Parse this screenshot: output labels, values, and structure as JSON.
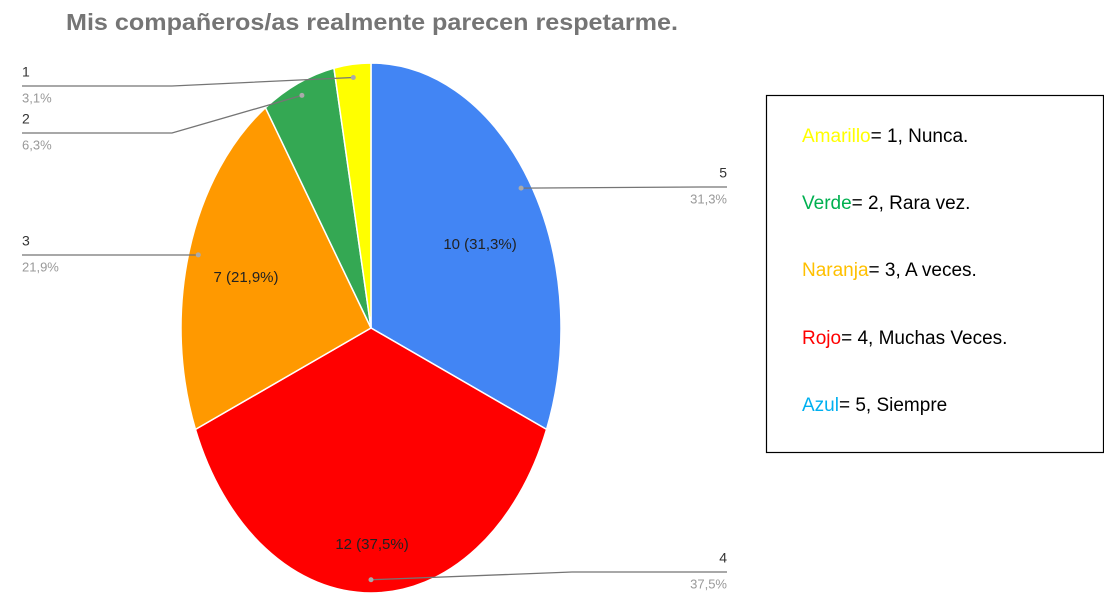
{
  "chart_data": {
    "type": "pie",
    "title": "Mis compañeros/as realmente parecen respetarme.",
    "categories": [
      "5",
      "4",
      "3",
      "2",
      "1"
    ],
    "values": [
      10,
      12,
      7,
      2,
      1
    ],
    "value_labels": [
      "10 (31,3%)",
      "12 (37,5%)",
      "7 (21,9%)",
      null,
      null
    ],
    "percent_labels": [
      "31,3%",
      "37,5%",
      "21,9%",
      "6,3%",
      "3,1%"
    ],
    "colors": [
      "#4285f4",
      "#ff0000",
      "#ff9900",
      "#34a853",
      "#ffff00"
    ]
  },
  "legend_box": [
    {
      "word": "Amarillo",
      "text": "= 1, Nunca.",
      "color": "#ffff00"
    },
    {
      "word": "Verde",
      "text": "= 2, Rara vez.",
      "color": "#00b050"
    },
    {
      "word": "Naranja",
      "text": "= 3, A veces.",
      "color": "#ffc000"
    },
    {
      "word": "Rojo",
      "text": "= 4, Muchas Veces.",
      "color": "#ff0000"
    },
    {
      "word": "Azul",
      "text": "= 5, Siempre",
      "color": "#00b0f0"
    }
  ]
}
